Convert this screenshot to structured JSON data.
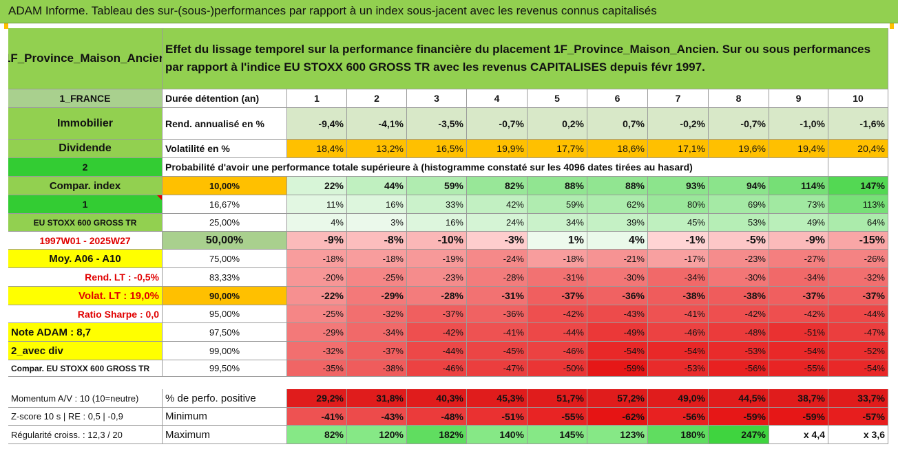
{
  "title": "ADAM Informe. Tableau des sur-(sous-)performances par rapport à un index sous-jacent avec les revenus connus capitalisés",
  "fund_name": "1F_Province_Maison_Ancien",
  "description": "Effet du lissage temporel sur la performance financière du placement 1F_Province_Maison_Ancien. Sur ou sous performances par rapport à l'indice EU STOXX 600 GROSS TR avec les revenus CAPITALISES depuis févr 1997.",
  "colors": {
    "title_green": "#92d050",
    "orange": "#ffc000",
    "bright_green": "#33cc33",
    "yellow": "#ffff00",
    "dark_red_text": "#e00000"
  },
  "left_labels": {
    "country": "1_FRANCE",
    "category": "Immobilier",
    "dividend": "Dividende",
    "num_2": "2",
    "compar_index": "Compar. index",
    "num_1": "1",
    "index_name": "EU STOXX 600 GROSS TR",
    "period": "1997W01 - 2025W27",
    "moy": "Moy. A06 - A10",
    "rend_lt": "Rend. LT :   -0,5%",
    "volat_lt": "Volat. LT :   19,0%",
    "ratio_sharpe": "Ratio Sharpe :   0,0",
    "note_adam": "Note ADAM : 8,7",
    "avec_div": "2_avec div",
    "compar_full": "Compar. EU STOXX 600 GROSS TR"
  },
  "header_row": {
    "label": "Durée détention (an)",
    "years": [
      "1",
      "2",
      "3",
      "4",
      "5",
      "6",
      "7",
      "8",
      "9",
      "10"
    ]
  },
  "rend_row": {
    "label": "Rend. annualisé en %",
    "values": [
      "-9,4%",
      "-4,1%",
      "-3,5%",
      "-0,7%",
      "0,2%",
      "0,7%",
      "-0,2%",
      "-0,7%",
      "-1,0%",
      "-1,6%"
    ]
  },
  "vol_row": {
    "label": "Volatilité en %",
    "values": [
      "18,4%",
      "13,2%",
      "16,5%",
      "19,9%",
      "17,7%",
      "18,6%",
      "17,1%",
      "19,6%",
      "19,4%",
      "20,4%"
    ]
  },
  "prob_text": "Probabilité d'avoir une performance totale supérieure à (histogramme constaté sur les 4096 dates tirées au hasard)",
  "quantiles": [
    {
      "pct": "10,00%",
      "values": [
        "22%",
        "44%",
        "59%",
        "82%",
        "88%",
        "88%",
        "93%",
        "94%",
        "114%",
        "147%"
      ]
    },
    {
      "pct": "16,67%",
      "values": [
        "11%",
        "16%",
        "33%",
        "42%",
        "59%",
        "62%",
        "80%",
        "69%",
        "73%",
        "113%"
      ]
    },
    {
      "pct": "25,00%",
      "values": [
        "4%",
        "3%",
        "16%",
        "24%",
        "34%",
        "39%",
        "45%",
        "53%",
        "49%",
        "64%"
      ]
    },
    {
      "pct": "50,00%",
      "values": [
        "-9%",
        "-8%",
        "-10%",
        "-3%",
        "1%",
        "4%",
        "-1%",
        "-5%",
        "-9%",
        "-15%"
      ]
    },
    {
      "pct": "75,00%",
      "values": [
        "-18%",
        "-18%",
        "-19%",
        "-24%",
        "-18%",
        "-21%",
        "-17%",
        "-23%",
        "-27%",
        "-26%"
      ]
    },
    {
      "pct": "83,33%",
      "values": [
        "-20%",
        "-25%",
        "-23%",
        "-28%",
        "-31%",
        "-30%",
        "-34%",
        "-30%",
        "-34%",
        "-32%"
      ]
    },
    {
      "pct": "90,00%",
      "values": [
        "-22%",
        "-29%",
        "-28%",
        "-31%",
        "-37%",
        "-36%",
        "-38%",
        "-38%",
        "-37%",
        "-37%"
      ]
    },
    {
      "pct": "95,00%",
      "values": [
        "-25%",
        "-32%",
        "-37%",
        "-36%",
        "-42%",
        "-43%",
        "-41%",
        "-42%",
        "-42%",
        "-44%"
      ]
    },
    {
      "pct": "97,50%",
      "values": [
        "-29%",
        "-34%",
        "-42%",
        "-41%",
        "-44%",
        "-49%",
        "-46%",
        "-48%",
        "-51%",
        "-47%"
      ]
    },
    {
      "pct": "99,00%",
      "values": [
        "-32%",
        "-37%",
        "-44%",
        "-45%",
        "-46%",
        "-54%",
        "-54%",
        "-53%",
        "-54%",
        "-52%"
      ]
    },
    {
      "pct": "99,50%",
      "values": [
        "-35%",
        "-38%",
        "-46%",
        "-47%",
        "-50%",
        "-59%",
        "-53%",
        "-56%",
        "-55%",
        "-54%"
      ]
    }
  ],
  "bottom": [
    {
      "left": "Momentum A/V : 10 (10=neutre)",
      "label": "% de perfo. positive",
      "values": [
        "29,2%",
        "31,8%",
        "40,3%",
        "45,3%",
        "51,7%",
        "57,2%",
        "49,0%",
        "44,5%",
        "38,7%",
        "33,7%"
      ]
    },
    {
      "left": "Z-score 10 s | RE : 0,5 | -0,9",
      "label": "Minimum",
      "values": [
        "-41%",
        "-43%",
        "-48%",
        "-51%",
        "-55%",
        "-62%",
        "-56%",
        "-59%",
        "-59%",
        "-57%"
      ]
    },
    {
      "left": "Régularité croiss. : 12,3 / 20",
      "label": "Maximum",
      "values": [
        "82%",
        "120%",
        "182%",
        "140%",
        "145%",
        "123%",
        "180%",
        "247%",
        "x 4,4",
        "x 3,6"
      ]
    }
  ]
}
